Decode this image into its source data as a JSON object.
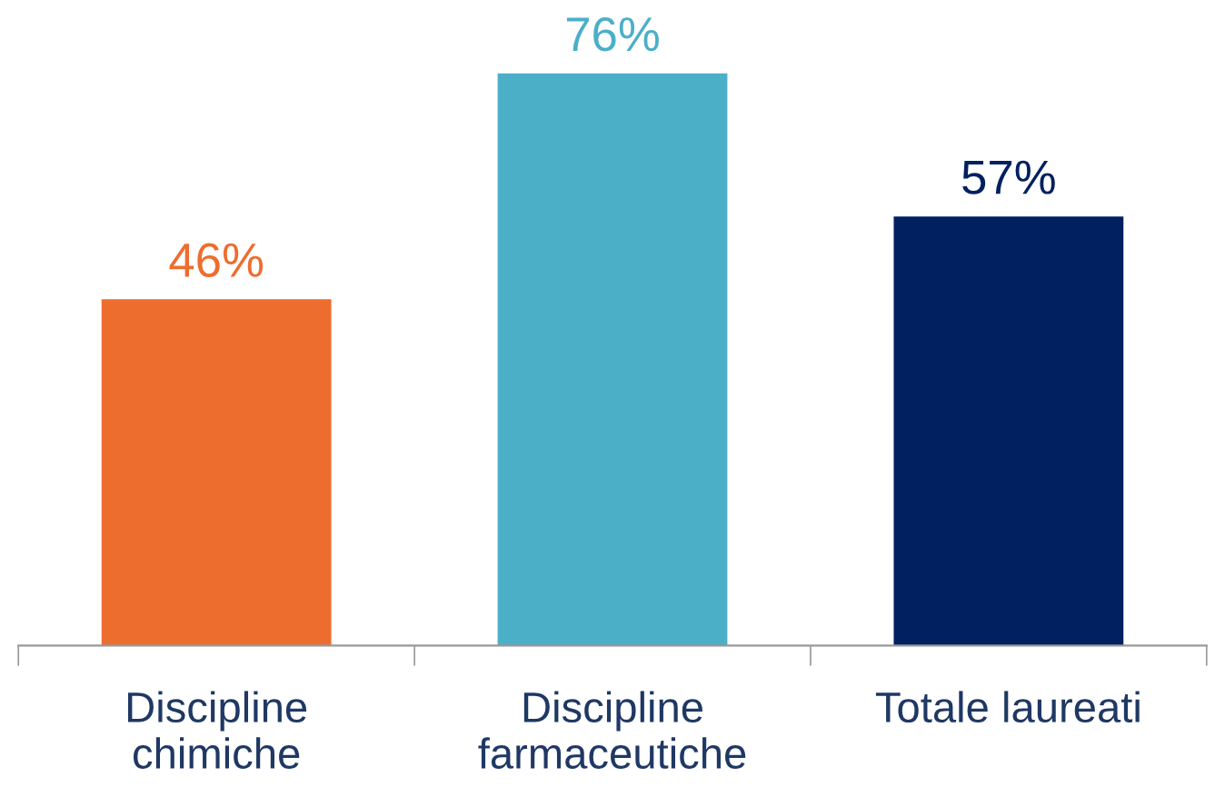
{
  "chart_data": {
    "type": "bar",
    "categories": [
      "Discipline\nchimiche",
      "Discipline\nfarmaceutiche",
      "Totale laureati"
    ],
    "values": [
      46,
      76,
      57
    ],
    "colors": [
      "#ed6d2f",
      "#4bafc8",
      "#002060"
    ],
    "value_labels": [
      "46%",
      "76%",
      "57%"
    ],
    "grid": false,
    "legend": false
  }
}
